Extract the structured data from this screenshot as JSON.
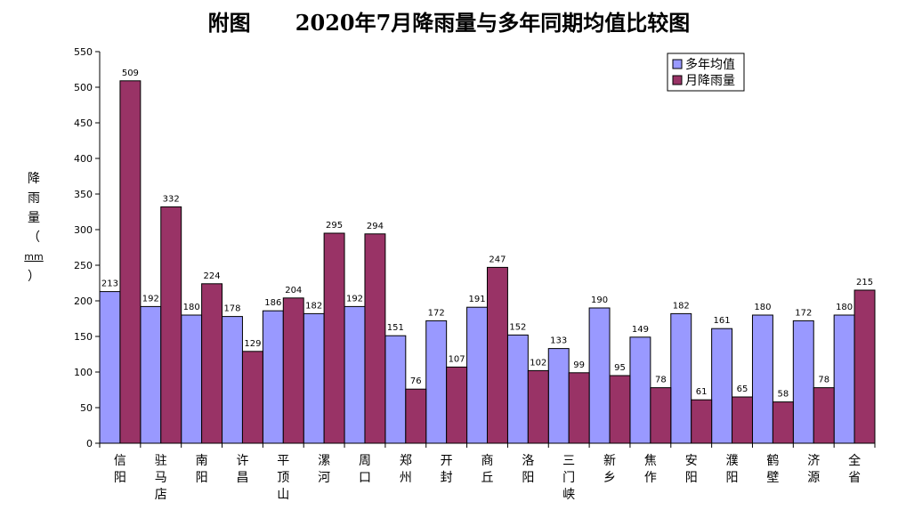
{
  "chart_data": {
    "type": "bar",
    "title": "附图      2020年7月降雨量与多年同期均值比较图",
    "ylabel": [
      "降",
      "雨",
      "量",
      "（",
      "mm",
      "）"
    ],
    "xlabel": "",
    "ylim": [
      0,
      550
    ],
    "yticks": [
      0,
      50,
      100,
      150,
      200,
      250,
      300,
      350,
      400,
      450,
      500,
      550
    ],
    "grid": false,
    "legend_position": "top-right",
    "categories": [
      [
        "信",
        "阳"
      ],
      [
        "驻",
        "马",
        "店"
      ],
      [
        "南",
        "阳"
      ],
      [
        "许",
        "昌"
      ],
      [
        "平",
        "顶",
        "山"
      ],
      [
        "漯",
        "河"
      ],
      [
        "周",
        "口"
      ],
      [
        "郑",
        "州"
      ],
      [
        "开",
        "封"
      ],
      [
        "商",
        "丘"
      ],
      [
        "洛",
        "阳"
      ],
      [
        "三",
        "门",
        "峡"
      ],
      [
        "新",
        "乡"
      ],
      [
        "焦",
        "作"
      ],
      [
        "安",
        "阳"
      ],
      [
        "濮",
        "阳"
      ],
      [
        "鹤",
        "壁"
      ],
      [
        "济",
        "源"
      ],
      [
        "全",
        "省"
      ]
    ],
    "series": [
      {
        "name": "多年均值",
        "color": "#9999ff",
        "values": [
          213,
          192,
          180,
          178,
          186,
          182,
          192,
          151,
          172,
          191,
          152,
          133,
          190,
          149,
          182,
          161,
          180,
          172,
          180
        ]
      },
      {
        "name": "月降雨量",
        "color": "#993366",
        "values": [
          509,
          332,
          224,
          129,
          204,
          295,
          294,
          76,
          107,
          247,
          102,
          99,
          95,
          78,
          61,
          65,
          58,
          78,
          215
        ]
      }
    ]
  }
}
